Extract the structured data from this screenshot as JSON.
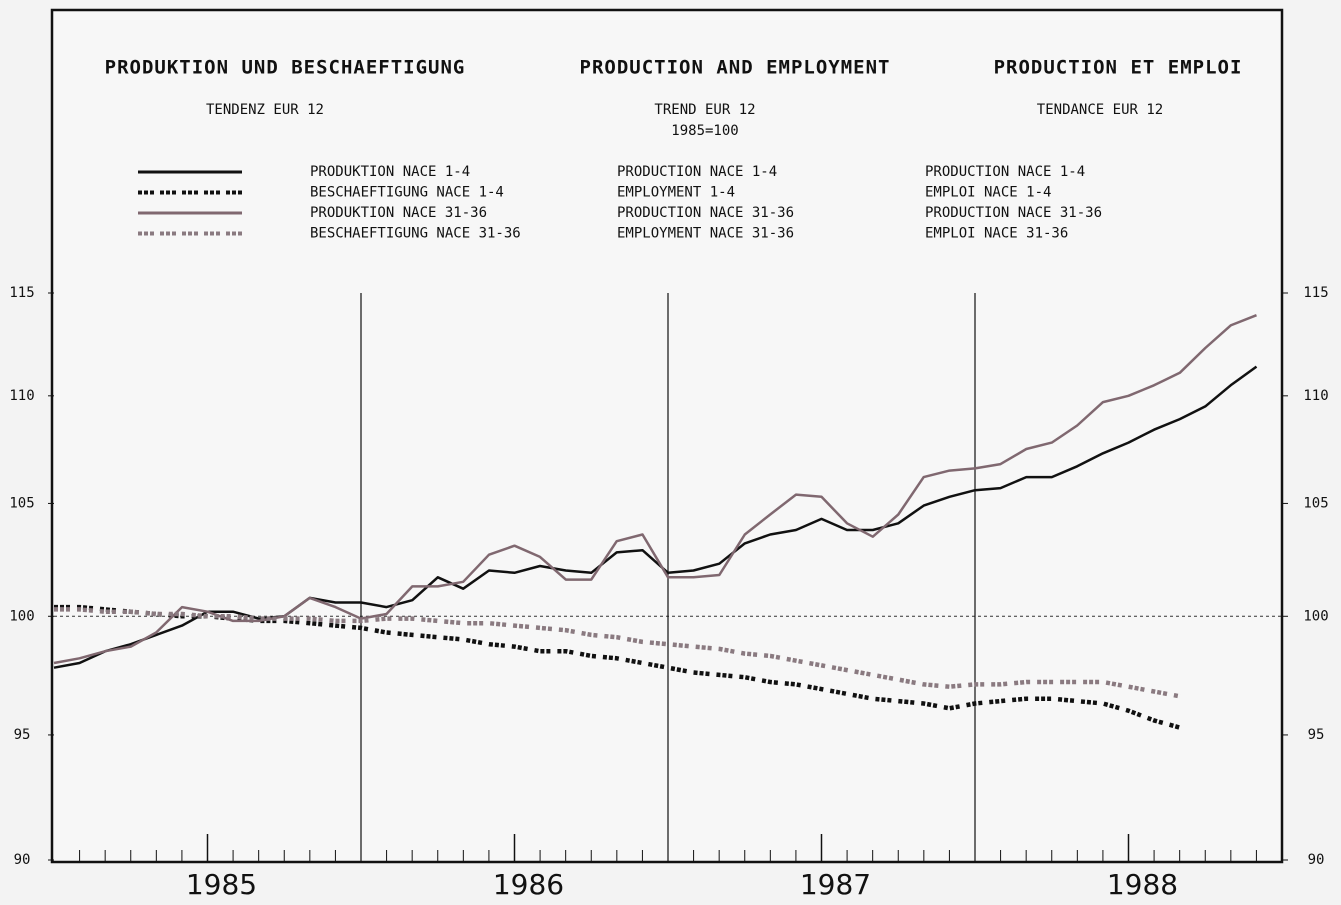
{
  "chart_data": {
    "type": "line",
    "titles": [
      "PRODUKTION UND BESCHAEFTIGUNG",
      "PRODUCTION AND EMPLOYMENT",
      "PRODUCTION ET EMPLOI"
    ],
    "subtitles": [
      "TENDENZ EUR 12",
      "TREND EUR 12",
      "1985=100",
      "TENDANCE EUR 12"
    ],
    "x": [
      1985,
      1985.083,
      1985.167,
      1985.25,
      1985.333,
      1985.417,
      1985.5,
      1985.583,
      1985.667,
      1985.75,
      1985.833,
      1985.917,
      1986,
      1986.083,
      1986.167,
      1986.25,
      1986.333,
      1986.417,
      1986.5,
      1986.583,
      1986.667,
      1986.75,
      1986.833,
      1986.917,
      1987,
      1987.083,
      1987.167,
      1987.25,
      1987.333,
      1987.417,
      1987.5,
      1987.583,
      1987.667,
      1987.75,
      1987.833,
      1987.917,
      1988,
      1988.083,
      1988.167,
      1988.25,
      1988.333,
      1988.417,
      1988.5,
      1988.583,
      1988.667,
      1988.75,
      1988.833,
      1988.917
    ],
    "series": [
      {
        "name": "PRODUKTION NACE 1-4",
        "name_en": "PRODUCTION NACE 1-4",
        "name_fr": "PRODUCTION NACE 1-4",
        "color": "#111111",
        "dashed": false,
        "values": [
          97.8,
          98.0,
          98.5,
          98.8,
          99.2,
          99.6,
          100.2,
          100.2,
          99.9,
          100.0,
          100.8,
          100.6,
          100.6,
          100.4,
          100.7,
          101.7,
          101.2,
          102.0,
          101.9,
          102.2,
          102.0,
          101.9,
          102.8,
          102.9,
          101.9,
          102.0,
          102.3,
          103.2,
          103.6,
          103.8,
          104.3,
          103.8,
          103.8,
          104.1,
          104.9,
          105.3,
          105.6,
          105.7,
          106.2,
          106.2,
          106.7,
          107.3,
          107.8,
          108.4,
          108.9,
          109.5,
          110.5,
          111.4
        ]
      },
      {
        "name": "BESCHAEFTIGUNG NACE 1-4",
        "name_en": "EMPLOYMENT 1-4",
        "name_fr": "EMPLOI NACE 1-4",
        "color": "#111111",
        "dashed": true,
        "values": [
          100.4,
          100.4,
          100.3,
          100.2,
          100.1,
          100.0,
          100.0,
          99.9,
          99.8,
          99.8,
          99.7,
          99.6,
          99.5,
          99.3,
          99.2,
          99.1,
          99.0,
          98.8,
          98.7,
          98.5,
          98.5,
          98.3,
          98.2,
          98.0,
          97.8,
          97.6,
          97.5,
          97.4,
          97.2,
          97.1,
          96.9,
          96.7,
          96.5,
          96.4,
          96.3,
          96.1,
          96.3,
          96.4,
          96.5,
          96.5,
          96.4,
          96.3,
          96.0,
          95.6,
          95.3,
          null,
          null,
          null
        ]
      },
      {
        "name": "PRODUKTION NACE 31-36",
        "name_en": "PRODUCTION NACE 31-36",
        "name_fr": "PRODUCTION NACE 31-36",
        "color": "#806870",
        "dashed": false,
        "values": [
          98.0,
          98.2,
          98.5,
          98.7,
          99.3,
          100.4,
          100.2,
          99.8,
          99.8,
          100.0,
          100.8,
          100.4,
          99.9,
          100.1,
          101.3,
          101.3,
          101.5,
          102.7,
          103.1,
          102.6,
          101.6,
          101.6,
          103.3,
          103.6,
          101.7,
          101.7,
          101.8,
          103.6,
          104.5,
          105.4,
          105.3,
          104.1,
          103.5,
          104.5,
          106.2,
          106.5,
          106.6,
          106.8,
          107.5,
          107.8,
          108.6,
          109.7,
          110.0,
          110.5,
          111.1,
          112.3,
          113.4,
          113.9
        ]
      },
      {
        "name": "BESCHAEFTIGUNG NACE 31-36",
        "name_en": "EMPLOYMENT NACE 31-36",
        "name_fr": "EMPLOI NACE 31-36",
        "color": "#8a7a80",
        "dashed": true,
        "values": [
          100.3,
          100.3,
          100.2,
          100.2,
          100.1,
          100.1,
          100.0,
          100.0,
          99.9,
          99.9,
          99.9,
          99.8,
          99.8,
          99.9,
          99.9,
          99.8,
          99.7,
          99.7,
          99.6,
          99.5,
          99.4,
          99.2,
          99.1,
          98.9,
          98.8,
          98.7,
          98.6,
          98.4,
          98.3,
          98.1,
          97.9,
          97.7,
          97.5,
          97.3,
          97.1,
          97.0,
          97.1,
          97.1,
          97.2,
          97.2,
          97.2,
          97.2,
          97.0,
          96.8,
          96.6,
          null,
          null,
          null
        ]
      }
    ],
    "xlim": [
      1985,
      1989
    ],
    "xticks": [
      {
        "value": 1985.5,
        "label": "1985"
      },
      {
        "value": 1986.5,
        "label": "1986"
      },
      {
        "value": 1987.5,
        "label": "1987"
      },
      {
        "value": 1988.5,
        "label": "1988"
      }
    ],
    "ylim": [
      90,
      115
    ],
    "yticks": [
      90,
      95,
      100,
      105,
      110,
      115
    ],
    "y2lim": [
      90,
      115
    ],
    "y2ticks": [
      90,
      95,
      100,
      105,
      110,
      115
    ],
    "log_y": true,
    "reference_line": 100
  }
}
